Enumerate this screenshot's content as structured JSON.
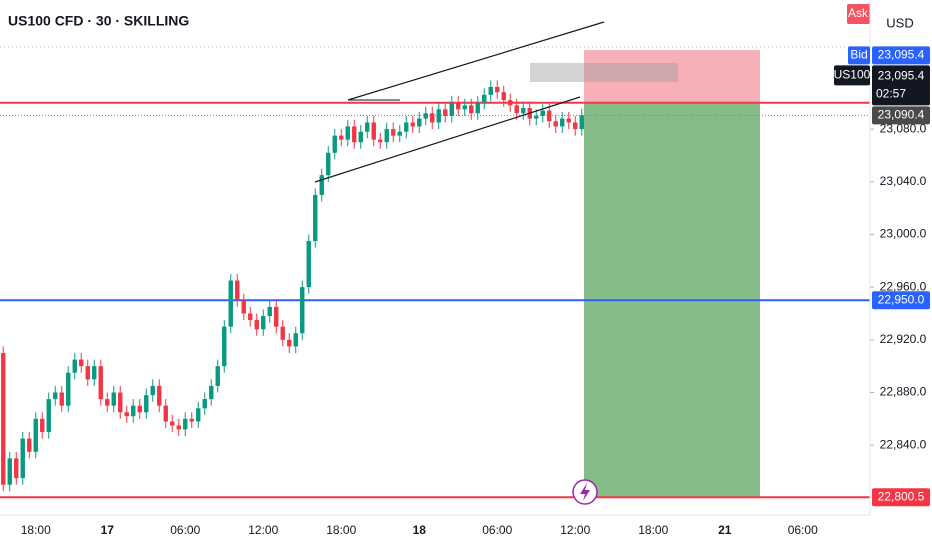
{
  "chart_data": {
    "type": "candlestick",
    "title": "US100 CFD · 30 · SKILLING",
    "currency": "USD",
    "ask_label": "Ask",
    "categories": [
      null,
      null,
      null,
      null,
      null,
      "18:00",
      null,
      null,
      null,
      null,
      null,
      null,
      null,
      null,
      null,
      null,
      "17",
      null,
      null,
      null,
      null,
      null,
      null,
      null,
      null,
      null,
      null,
      null,
      "06:00",
      null,
      null,
      null,
      null,
      null,
      null,
      null,
      null,
      null,
      null,
      null,
      "12:00",
      null,
      null,
      null,
      null,
      null,
      null,
      null,
      null,
      null,
      null,
      null,
      "18:00",
      null,
      null,
      null,
      null,
      null,
      null,
      null,
      null,
      null,
      null,
      null,
      "18",
      null,
      null,
      null,
      null,
      null,
      null,
      null,
      null,
      null,
      null,
      null,
      "06:00",
      null,
      null,
      null,
      null,
      null,
      null,
      null,
      null,
      null,
      null,
      null,
      "12:00",
      null,
      null,
      null,
      null,
      null,
      null,
      null,
      null,
      null,
      null,
      null,
      "18:00",
      null,
      null,
      null,
      null,
      null,
      null,
      null,
      null,
      null,
      null,
      "21",
      null,
      null,
      null,
      null,
      null,
      null,
      null,
      null,
      null,
      null,
      null,
      "06:00",
      null,
      null,
      null,
      null,
      null,
      null,
      null,
      null,
      null,
      null
    ],
    "open": [
      22910,
      22810,
      22830,
      22815,
      22845,
      22835,
      22860,
      22850,
      22875,
      22880,
      22870,
      22895,
      22905,
      22900,
      22890,
      22900,
      22875,
      22870,
      22880,
      22865,
      22862,
      22870,
      22865,
      22878,
      22885,
      22870,
      22858,
      22855,
      22852,
      22860,
      22858,
      22868,
      22875,
      22885,
      22900,
      22930,
      22965,
      22950,
      22940,
      22935,
      22928,
      22938,
      22945,
      22930,
      22920,
      22915,
      22925,
      22960,
      22995,
      23030,
      23045,
      23062,
      23075,
      23072,
      23082,
      23070,
      23078,
      23085,
      23072,
      23070,
      23080,
      23075,
      23078,
      23085,
      23082,
      23088,
      23092,
      23085,
      23095,
      23090,
      23100,
      23095,
      23098,
      23092,
      23100,
      23106,
      23112,
      23108,
      23102,
      23098,
      23092,
      23096,
      23088,
      23090,
      23094,
      23086,
      23082,
      23088,
      23085,
      23080,
      null,
      null,
      null,
      null,
      null,
      null,
      null,
      null,
      null,
      null,
      null,
      null,
      null,
      null,
      null,
      null,
      null,
      null,
      null,
      null,
      null,
      null,
      null,
      null,
      null,
      null,
      null,
      null,
      null,
      null,
      null,
      null,
      null,
      null,
      null,
      null,
      null,
      null,
      null,
      null,
      null,
      null,
      null,
      null
    ],
    "high": [
      22915,
      22835,
      22835,
      22850,
      22850,
      22865,
      22865,
      22880,
      22885,
      22885,
      22900,
      22910,
      22910,
      22905,
      22905,
      22905,
      22880,
      22885,
      22885,
      22870,
      22875,
      22875,
      22883,
      22890,
      22890,
      22875,
      22863,
      22860,
      22865,
      22865,
      22873,
      22880,
      22890,
      22905,
      22935,
      22970,
      22970,
      22955,
      22945,
      22940,
      22943,
      22950,
      22950,
      22935,
      22925,
      22930,
      22965,
      23000,
      23035,
      23050,
      23067,
      23080,
      23080,
      23087,
      23087,
      23083,
      23090,
      23090,
      23077,
      23085,
      23085,
      23083,
      23090,
      23090,
      23093,
      23097,
      23097,
      23100,
      23100,
      23105,
      23105,
      23103,
      23103,
      23105,
      23111,
      23117,
      23117,
      23113,
      23107,
      23103,
      23101,
      23101,
      23095,
      23099,
      23099,
      23091,
      23093,
      23093,
      23090,
      23095.4,
      null,
      null,
      null,
      null,
      null,
      null,
      null,
      null,
      null,
      null,
      null,
      null,
      null,
      null,
      null,
      null,
      null,
      null,
      null,
      null,
      null,
      null,
      null,
      null,
      null,
      null,
      null,
      null,
      null,
      null,
      null,
      null,
      null,
      null,
      null,
      null,
      null,
      null,
      null,
      null,
      null,
      null,
      null,
      null
    ],
    "low": [
      22805,
      22805,
      22810,
      22810,
      22830,
      22830,
      22845,
      22845,
      22870,
      22865,
      22865,
      22890,
      22895,
      22885,
      22885,
      22870,
      22865,
      22865,
      22860,
      22857,
      22857,
      22860,
      22860,
      22873,
      22865,
      22853,
      22850,
      22847,
      22847,
      22853,
      22853,
      22863,
      22870,
      22880,
      22895,
      22925,
      22945,
      22935,
      22930,
      22923,
      22923,
      22933,
      22925,
      22915,
      22910,
      22910,
      22920,
      22955,
      22990,
      23025,
      23040,
      23057,
      23067,
      23067,
      23065,
      23065,
      23073,
      23067,
      23065,
      23065,
      23070,
      23070,
      23073,
      23077,
      23077,
      23083,
      23080,
      23080,
      23085,
      23085,
      23090,
      23090,
      23087,
      23087,
      23095,
      23101,
      23103,
      23097,
      23093,
      23087,
      23087,
      23083,
      23083,
      23085,
      23081,
      23077,
      23077,
      23080,
      23075,
      23075,
      null,
      null,
      null,
      null,
      null,
      null,
      null,
      null,
      null,
      null,
      null,
      null,
      null,
      null,
      null,
      null,
      null,
      null,
      null,
      null,
      null,
      null,
      null,
      null,
      null,
      null,
      null,
      null,
      null,
      null,
      null,
      null,
      null,
      null,
      null,
      null,
      null,
      null,
      null,
      null,
      null,
      null,
      null,
      null
    ],
    "close": [
      22810,
      22830,
      22815,
      22845,
      22835,
      22860,
      22850,
      22875,
      22880,
      22870,
      22895,
      22905,
      22900,
      22890,
      22900,
      22875,
      22870,
      22880,
      22865,
      22862,
      22870,
      22865,
      22878,
      22885,
      22870,
      22858,
      22855,
      22852,
      22860,
      22858,
      22868,
      22875,
      22885,
      22900,
      22930,
      22965,
      22950,
      22940,
      22935,
      22928,
      22938,
      22945,
      22930,
      22920,
      22915,
      22925,
      22960,
      22995,
      23030,
      23045,
      23062,
      23075,
      23072,
      23082,
      23070,
      23078,
      23085,
      23072,
      23070,
      23080,
      23075,
      23078,
      23085,
      23082,
      23088,
      23092,
      23085,
      23095,
      23090,
      23100,
      23095,
      23098,
      23092,
      23100,
      23106,
      23112,
      23108,
      23102,
      23098,
      23092,
      23096,
      23088,
      23090,
      23094,
      23086,
      23082,
      23088,
      23085,
      23080,
      23090.4,
      null,
      null,
      null,
      null,
      null,
      null,
      null,
      null,
      null,
      null,
      null,
      null,
      null,
      null,
      null,
      null,
      null,
      null,
      null,
      null,
      null,
      null,
      null,
      null,
      null,
      null,
      null,
      null,
      null,
      null,
      null,
      null,
      null,
      null,
      null,
      null,
      null,
      null,
      null,
      null,
      null,
      null,
      null,
      null
    ],
    "up_color": "#089981",
    "down_color": "#f23645",
    "ylim": [
      22787,
      23178
    ],
    "yticks": [
      {
        "value": 22840,
        "label": "22,840.0"
      },
      {
        "value": 22880,
        "label": "22,880.0"
      },
      {
        "value": 22920,
        "label": "22,920.0"
      },
      {
        "value": 22960,
        "label": "22,960.0"
      },
      {
        "value": 23000,
        "label": "23,000.0"
      },
      {
        "value": 23040,
        "label": "23,040.0"
      },
      {
        "value": 23080,
        "label": "23,080.0"
      }
    ],
    "price_lines": [
      {
        "value": 23100,
        "color": "#f23645"
      },
      {
        "value": 22950,
        "label": "22,950.0",
        "color": "#2962ff"
      },
      {
        "value": 22800.5,
        "label": "22,800.5",
        "color": "#f23645"
      }
    ],
    "bid": {
      "name": "Bid",
      "value": 23095.4,
      "label": "23,095.4"
    },
    "last": {
      "name": "US100",
      "value": 23095.4,
      "label": "23,095.4",
      "countdown": "02:57"
    },
    "current": {
      "value": 23090.4,
      "label": "23,090.4"
    },
    "position": {
      "entry": 23100,
      "stop": 23140,
      "target": 22800.5
    }
  }
}
